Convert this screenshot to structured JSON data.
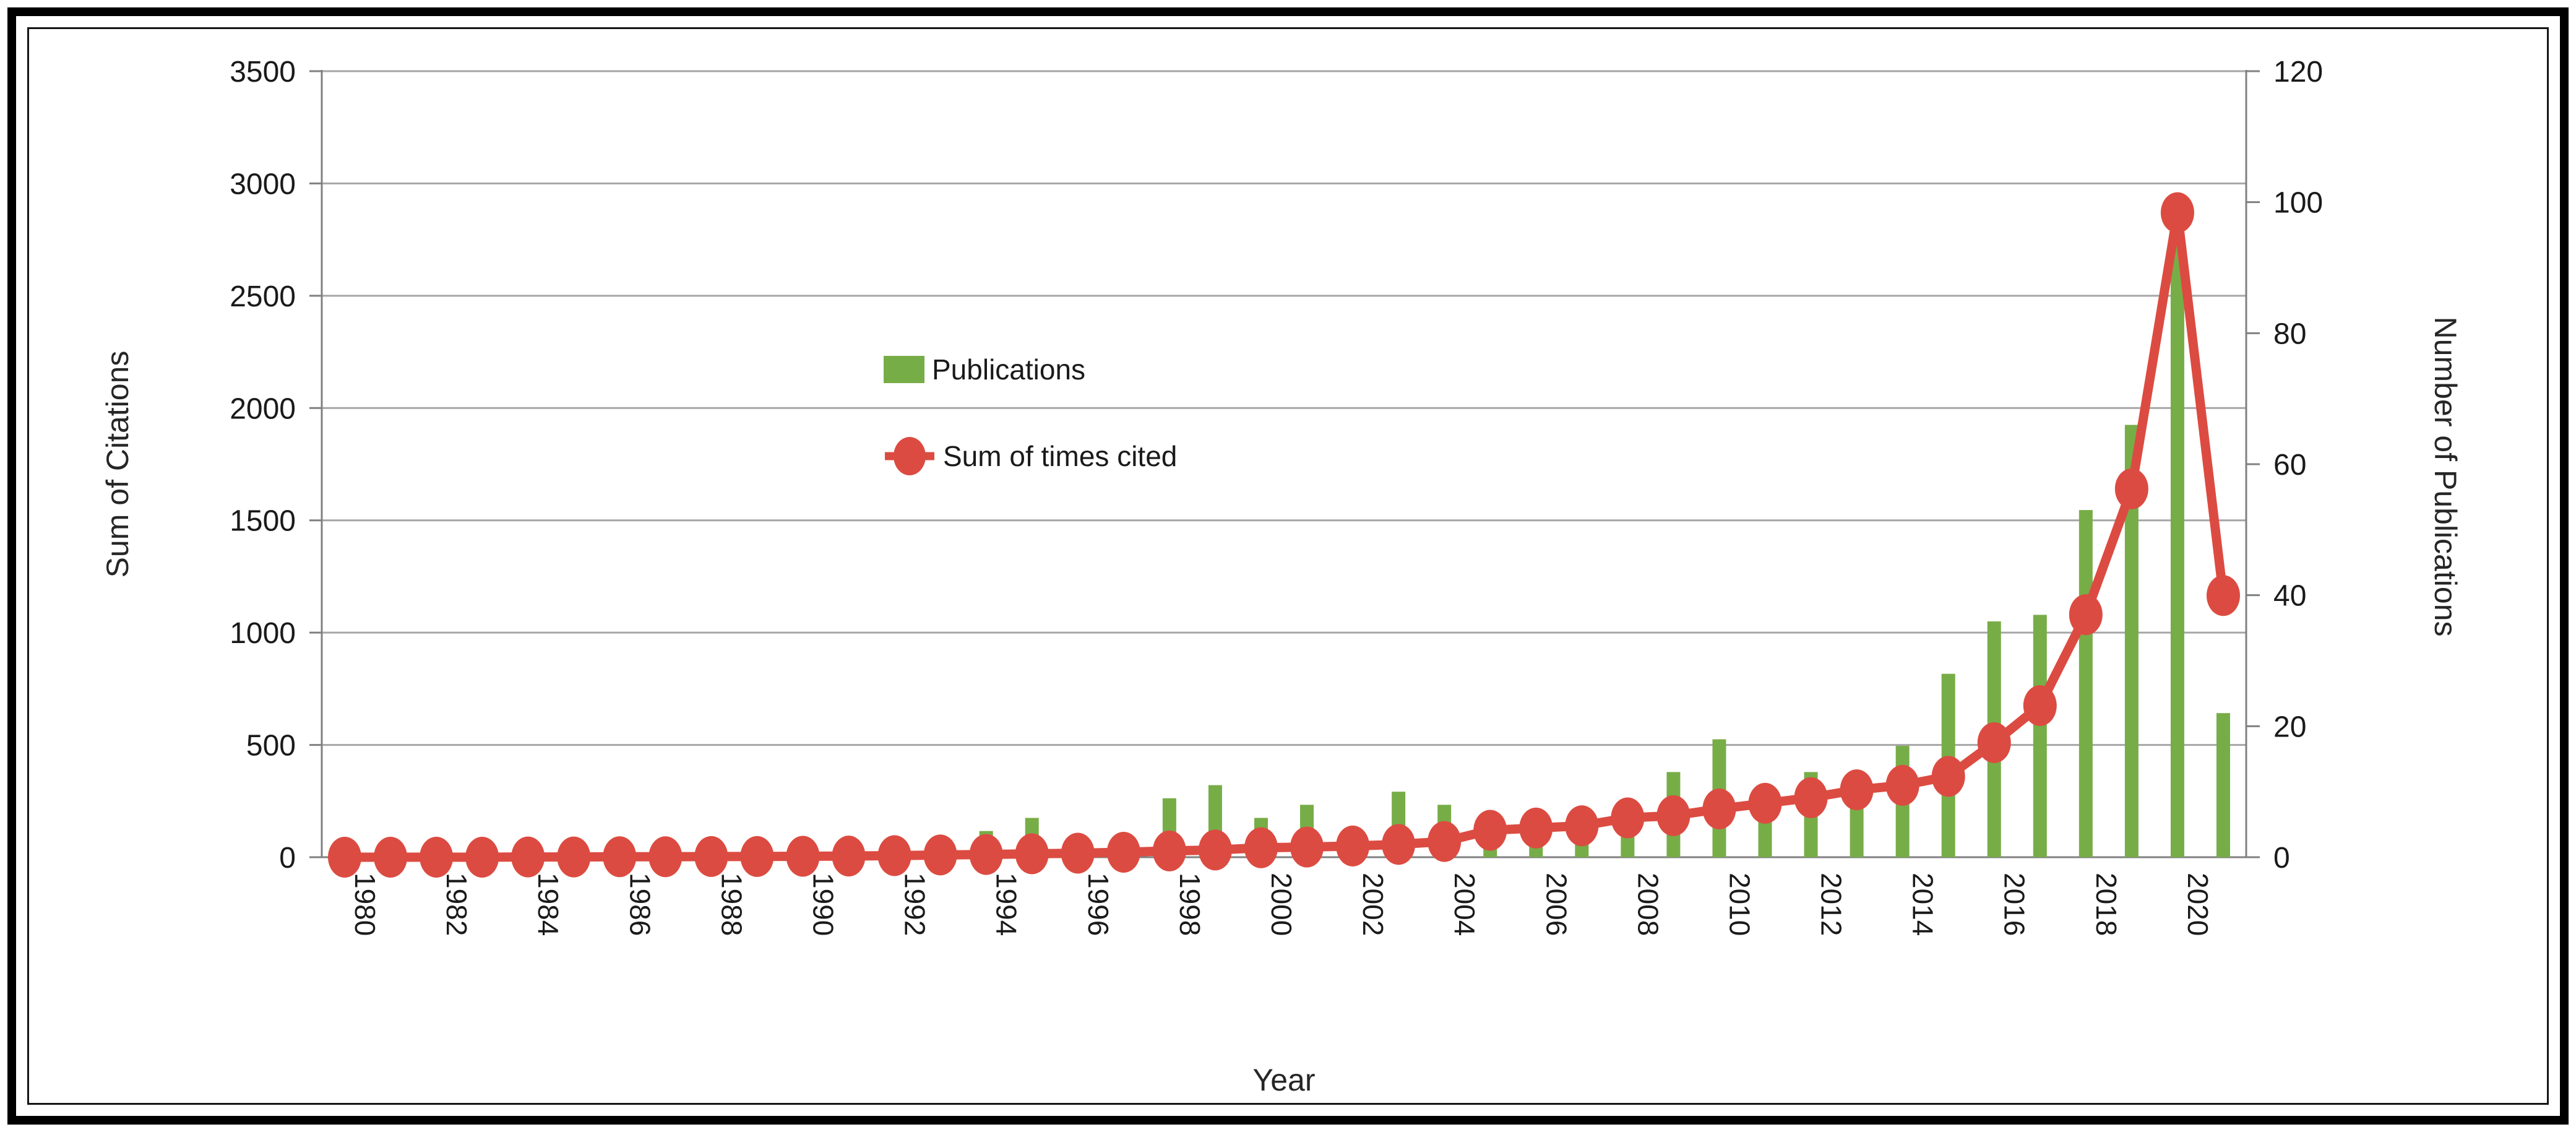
{
  "chart_data": {
    "type": "combo-bar-line",
    "title": "",
    "categories": [
      1980,
      1981,
      1982,
      1983,
      1984,
      1985,
      1986,
      1987,
      1988,
      1989,
      1990,
      1991,
      1992,
      1993,
      1994,
      1995,
      1996,
      1997,
      1998,
      1999,
      2000,
      2001,
      2002,
      2003,
      2004,
      2005,
      2006,
      2007,
      2008,
      2009,
      2010,
      2011,
      2012,
      2013,
      2014,
      2015,
      2016,
      2017,
      2018,
      2019,
      2020,
      2021
    ],
    "series": [
      {
        "name": "Publications",
        "type": "bar",
        "axis": "right",
        "color": "#77ad47",
        "values": [
          0,
          0,
          0,
          0,
          0,
          0,
          0,
          0,
          0,
          0,
          0,
          0,
          0,
          0,
          4,
          6,
          2,
          3,
          9,
          11,
          6,
          8,
          2,
          10,
          8,
          6,
          7,
          7,
          8,
          13,
          18,
          11,
          13,
          12,
          17,
          28,
          36,
          37,
          53,
          66,
          101,
          22
        ]
      },
      {
        "name": "Sum of times cited",
        "type": "line",
        "axis": "left",
        "color": "#dc4b41",
        "values": [
          0,
          0,
          0,
          0,
          1,
          1,
          2,
          2,
          3,
          3,
          4,
          5,
          7,
          10,
          12,
          15,
          18,
          22,
          28,
          32,
          42,
          45,
          50,
          57,
          70,
          120,
          130,
          140,
          175,
          185,
          215,
          240,
          265,
          300,
          320,
          360,
          510,
          675,
          1080,
          1640,
          2870,
          1165
        ]
      }
    ],
    "left_axis": {
      "title": "Sum of Citations",
      "min": 0,
      "max": 3500,
      "step": 500
    },
    "right_axis": {
      "title": "Number of Publications",
      "min": 0,
      "max": 120,
      "step": 20
    },
    "x_axis": {
      "title": "Year",
      "label_every": 2
    },
    "legend": {
      "position": "inside-upper-left",
      "items": [
        "Publications",
        "Sum of times cited"
      ]
    },
    "grid": true,
    "colors": {
      "gridline": "#a6a6a6",
      "axis": "#808080",
      "text": "#1a1a1a",
      "background": "#ffffff",
      "frame_border": "#000000"
    }
  }
}
